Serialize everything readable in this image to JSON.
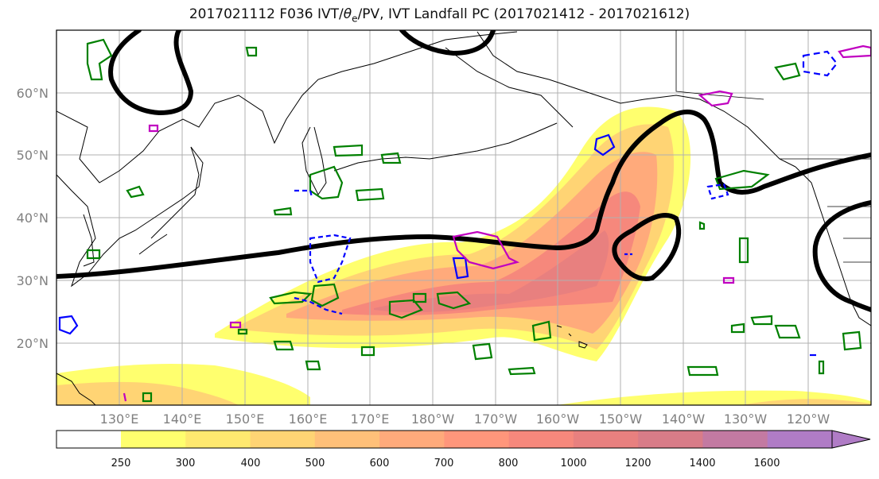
{
  "title": {
    "prefix": "2017021112 F036 IVT/",
    "theta": "θ",
    "theta_sub": "e",
    "suffix": "/PV, IVT Landfall PC (2017021412 - 2017021612)"
  },
  "map": {
    "lat_ticks": [
      "20°N",
      "30°N",
      "40°N",
      "50°N",
      "60°N"
    ],
    "lon_ticks": [
      "130°E",
      "140°E",
      "150°E",
      "160°E",
      "170°E",
      "180°W",
      "170°W",
      "160°W",
      "150°W",
      "140°W",
      "130°W",
      "120°W"
    ],
    "contour_colors": {
      "ivt_fill_low": "#ffff6e",
      "ivt_fill_high": "#b07cc6",
      "theta_e": "#000000",
      "pv_positive": "#008000",
      "pv_negative": "#0000ff",
      "landfall_pc": "#c000c0"
    }
  },
  "colorbar": {
    "ticks": [
      "250",
      "300",
      "400",
      "500",
      "600",
      "700",
      "800",
      "1000",
      "1200",
      "1400",
      "1600"
    ],
    "colors": [
      "#ffff6e",
      "#ffe96f",
      "#ffd474",
      "#ffc079",
      "#ffaa7b",
      "#ff967b",
      "#f6887c",
      "#e8807f",
      "#d87c88",
      "#c37aa2",
      "#b07cc6"
    ],
    "extend": "max"
  }
}
